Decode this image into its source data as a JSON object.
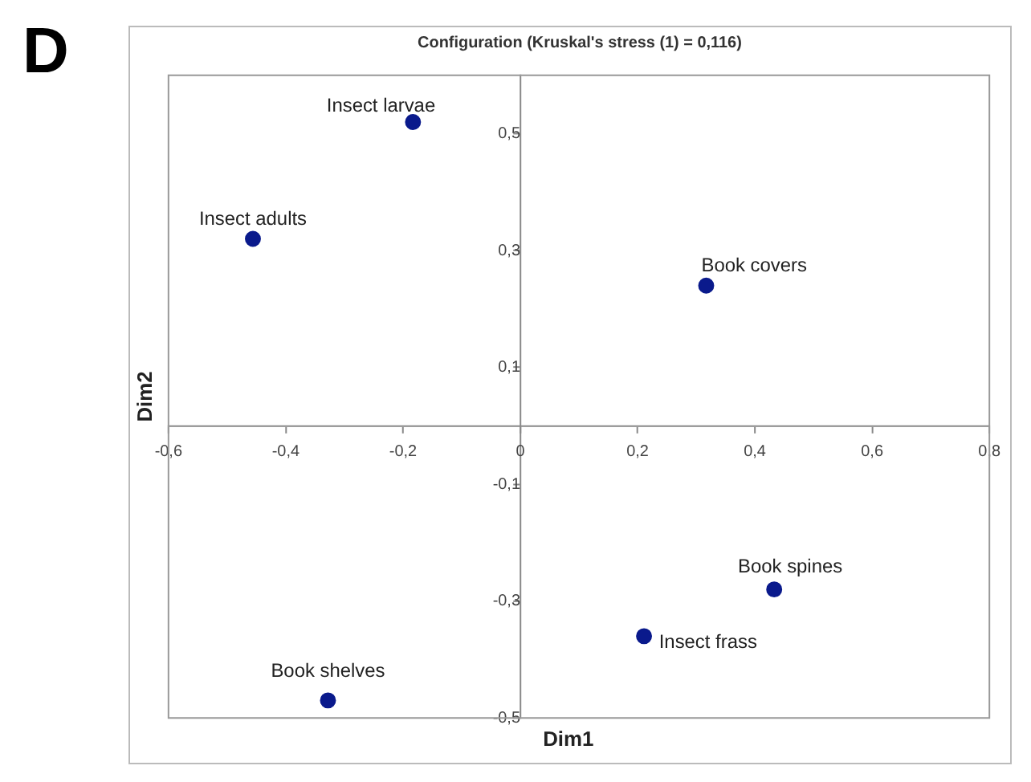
{
  "chart_data": {
    "type": "scatter",
    "title": "Configuration (Kruskal's stress (1) = 0,116)",
    "xlabel": "Dim1",
    "ylabel": "Dim2",
    "x": [
      -0.183,
      -0.456,
      0.317,
      0.433,
      0.211,
      -0.328
    ],
    "values": [
      0.52,
      0.32,
      0.24,
      -0.28,
      -0.36,
      -0.47
    ],
    "color": "#0a1a8c",
    "marker": "circle",
    "grid": false,
    "legend": false,
    "xlim": [
      -0.6,
      0.8
    ],
    "ylim": [
      -0.5,
      0.6
    ],
    "xticks": [
      {
        "value": -0.6,
        "label": "-0,6"
      },
      {
        "value": -0.4,
        "label": "-0,4"
      },
      {
        "value": -0.2,
        "label": "-0,2"
      },
      0,
      {
        "value": 0.2,
        "label": "0,2"
      },
      {
        "value": 0.4,
        "label": "0,4"
      },
      {
        "value": 0.6,
        "label": "0,6"
      },
      {
        "value": 0.8,
        "label": "0,8"
      }
    ],
    "yticks": [
      {
        "value": -0.5,
        "label": "-0,5"
      },
      {
        "value": -0.3,
        "label": "-0,3"
      },
      {
        "value": -0.1,
        "label": "-0,1"
      },
      {
        "value": 0.1,
        "label": "0,1"
      },
      {
        "value": 0.3,
        "label": "0,3"
      },
      {
        "value": 0.5,
        "label": "0,5"
      }
    ],
    "annotations": [
      "D",
      {
        "text": "Insect larvae",
        "x": -0.183,
        "y": 0.52
      },
      {
        "text": "Insect adults",
        "x": -0.456,
        "y": 0.32
      },
      {
        "text": "Book covers",
        "x": 0.317,
        "y": 0.24
      },
      {
        "text": "Book spines",
        "x": 0.433,
        "y": -0.28
      },
      {
        "text": "Insect frass",
        "x": 0.211,
        "y": -0.36
      },
      {
        "text": "Book shelves",
        "x": -0.328,
        "y": -0.47
      }
    ]
  }
}
